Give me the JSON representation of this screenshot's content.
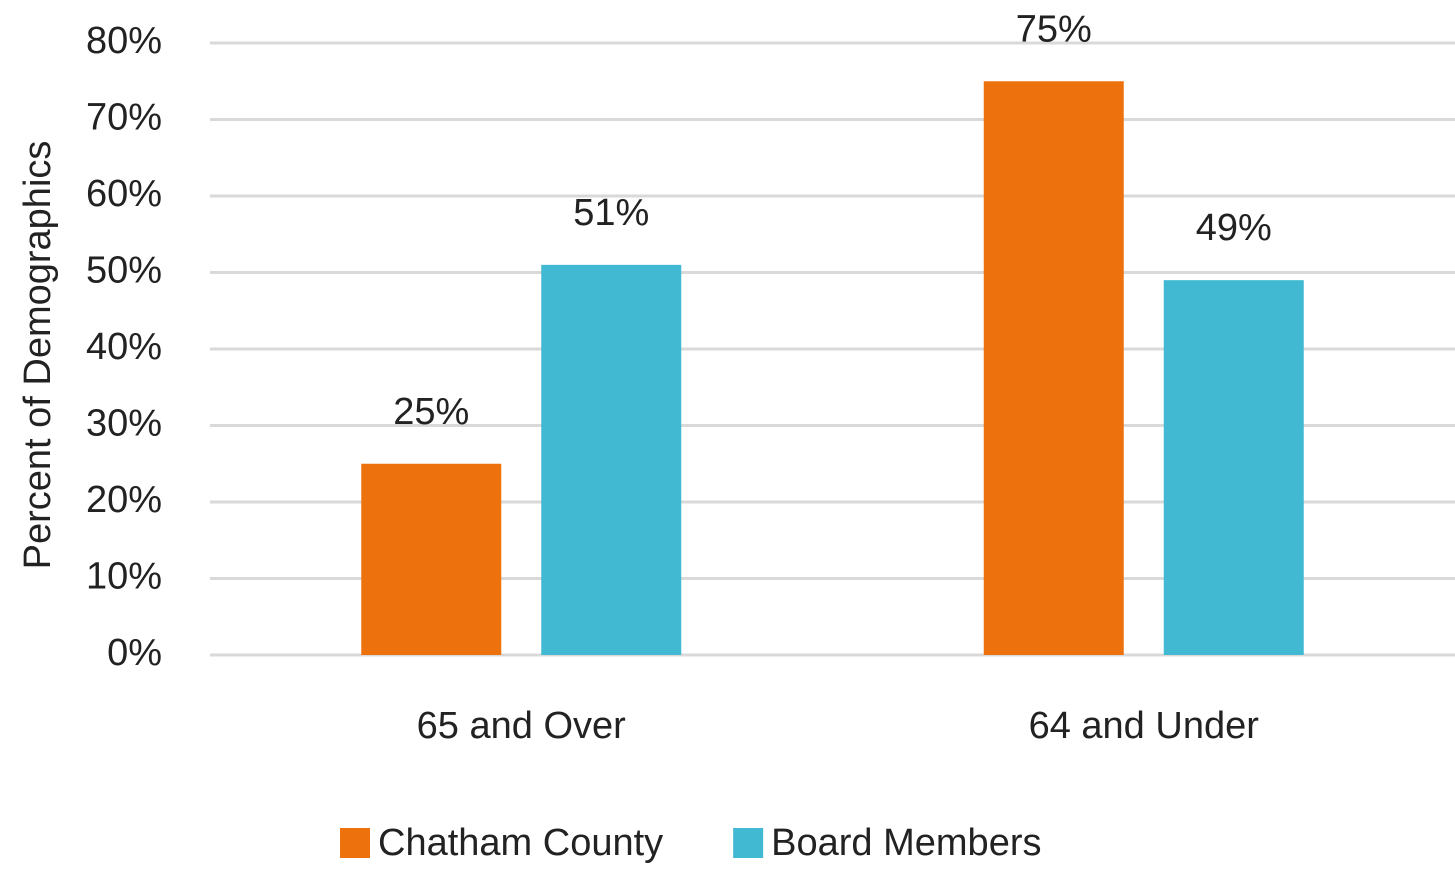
{
  "chart_data": {
    "type": "bar",
    "y_label": "Percent of Demographics",
    "categories": [
      "65 and Over",
      "64 and Under"
    ],
    "series": [
      {
        "name": "Chatham County",
        "color": "#ed720e",
        "values": [
          25,
          75
        ],
        "value_labels": [
          "25%",
          "75%"
        ]
      },
      {
        "name": "Board Members",
        "color": "#41b9d3",
        "values": [
          51,
          49
        ],
        "value_labels": [
          "51%",
          "49%"
        ]
      }
    ],
    "ylim": [
      0,
      80
    ],
    "yticks": [
      {
        "value": 0,
        "label": "0%"
      },
      {
        "value": 10,
        "label": "10%"
      },
      {
        "value": 20,
        "label": "20%"
      },
      {
        "value": 30,
        "label": "30%"
      },
      {
        "value": 40,
        "label": "40%"
      },
      {
        "value": 50,
        "label": "50%"
      },
      {
        "value": 60,
        "label": "60%"
      },
      {
        "value": 70,
        "label": "70%"
      },
      {
        "value": 80,
        "label": "80%"
      }
    ],
    "grid": true,
    "legend": "bottom"
  }
}
